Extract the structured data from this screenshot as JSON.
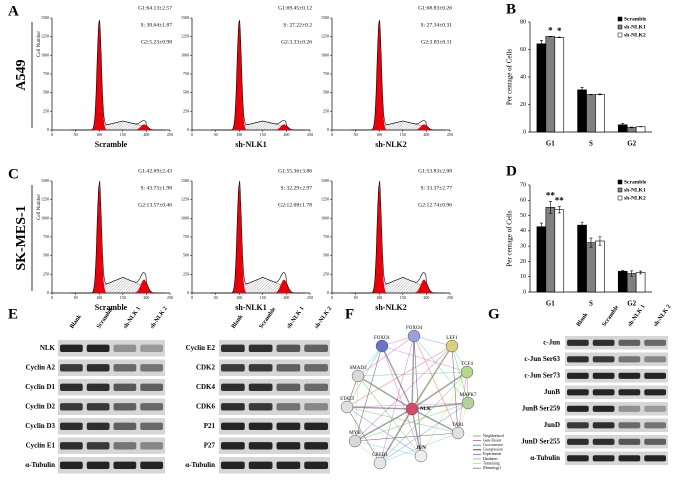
{
  "panel_labels": {
    "a": "A",
    "b": "B",
    "c": "C",
    "d": "D",
    "e": "E",
    "f": "F",
    "g": "G"
  },
  "flow": [
    {
      "cell_line": "A549",
      "y_label": "Cell Number",
      "xlim": [
        0,
        250
      ],
      "xticks": [
        0,
        50,
        100,
        150,
        200,
        250
      ],
      "ylim": [
        0,
        1500
      ],
      "yticks": [
        0,
        250,
        500,
        750,
        1000,
        1250,
        1500
      ],
      "samples": [
        {
          "name": "Scramble",
          "stats": [
            "G1:64.13±2.57",
            "S: 30.64±1.87",
            "G2:5.23±0.98"
          ]
        },
        {
          "name": "sh-NLK1",
          "stats": [
            "G1:69.45±0.12",
            "S: 27.22±0.2",
            "G2:3.33±0.26"
          ]
        },
        {
          "name": "sh-NLK2",
          "stats": [
            "G1:68.83±0.26",
            "S: 27.34±0.31",
            "G2:3.83±0.11"
          ]
        }
      ]
    },
    {
      "cell_line": "SK-MES-1",
      "y_label": "Cell Number",
      "xlim": [
        0,
        250
      ],
      "xticks": [
        0,
        50,
        100,
        150,
        200,
        250
      ],
      "ylim": [
        0,
        1500
      ],
      "yticks": [
        0,
        250,
        500,
        750,
        1000,
        1250,
        1500
      ],
      "samples": [
        {
          "name": "Scramble",
          "stats": [
            "G1:42.69±2.43",
            "S: 43.73±1.98",
            "G2:13.57±0.46"
          ]
        },
        {
          "name": "sh-NLK1",
          "stats": [
            "G1:55.36±3.86",
            "S: 32.29±2.97",
            "G2:12.08±1.78"
          ]
        },
        {
          "name": "sh-NLK2",
          "stats": [
            "G1:53.83±2.08",
            "S: 33.37±2.77",
            "G2:12.74±0.96"
          ]
        }
      ]
    }
  ],
  "chart_data": [
    {
      "type": "bar",
      "y_label": "Per centage of Cells",
      "categories": [
        "G1",
        "S",
        "G2"
      ],
      "series": [
        {
          "name": "Scramble",
          "color": "#000000",
          "values": [
            64.13,
            30.64,
            5.23
          ],
          "errors": [
            2.57,
            1.87,
            0.98
          ]
        },
        {
          "name": "sh-NLK1",
          "color": "#808080",
          "values": [
            69.45,
            27.22,
            3.33
          ],
          "errors": [
            0.12,
            0.2,
            0.26
          ]
        },
        {
          "name": "sh-NLK2",
          "color": "#ffffff",
          "values": [
            68.83,
            27.34,
            3.83
          ],
          "errors": [
            0.26,
            0.31,
            0.11
          ]
        }
      ],
      "ylim": [
        0,
        80
      ],
      "yticks": [
        0,
        20,
        40,
        60,
        80
      ],
      "annotations": [
        {
          "text": "*",
          "series": "sh-NLK1",
          "category": "G1"
        },
        {
          "text": "*",
          "series": "sh-NLK2",
          "category": "G1"
        }
      ]
    },
    {
      "type": "bar",
      "y_label": "Per centage of Cells",
      "categories": [
        "G1",
        "S",
        "G2"
      ],
      "series": [
        {
          "name": "Scramble",
          "color": "#000000",
          "values": [
            42.69,
            43.73,
            13.57
          ],
          "errors": [
            2.43,
            1.98,
            0.46
          ]
        },
        {
          "name": "sh-NLK1",
          "color": "#808080",
          "values": [
            55.36,
            32.29,
            12.08
          ],
          "errors": [
            3.86,
            2.97,
            1.78
          ]
        },
        {
          "name": "sh-NLK2",
          "color": "#ffffff",
          "values": [
            53.83,
            33.37,
            12.74
          ],
          "errors": [
            2.08,
            2.77,
            0.96
          ]
        }
      ],
      "ylim": [
        0,
        70
      ],
      "yticks": [
        0,
        10,
        20,
        30,
        40,
        50,
        60,
        70
      ],
      "annotations": [
        {
          "text": "**",
          "series": "sh-NLK1",
          "category": "G1"
        },
        {
          "text": "**",
          "series": "sh-NLK2",
          "category": "G1"
        }
      ]
    }
  ],
  "blots": [
    {
      "lanes": [
        "Blank",
        "Scramble",
        "sh-NLK 1",
        "sh-NLK 2"
      ],
      "rows": [
        "NLK",
        "Cyclin A2",
        "Cyclin D1",
        "Cyclin D2",
        "Cyclin D3",
        "Cyclin E1",
        "α-Tubulin"
      ]
    },
    {
      "lanes": [
        "Blank",
        "Scramble",
        "sh-NLK 1",
        "sh-NLK 2"
      ],
      "rows": [
        "Cyclin E2",
        "CDK2",
        "CDK4",
        "CDK6",
        "P21",
        "P27",
        "α-Tubulin"
      ]
    },
    {
      "lanes": [
        "Blank",
        "Scramble",
        "sh-NLK 1",
        "sh-NLK 2"
      ],
      "rows": [
        "c-Jun",
        "c-Jun Ser63",
        "c-Jun Ser73",
        "JunB",
        "JunB Ser259",
        "JunD",
        "JunD Ser255",
        "α-Tubulin"
      ]
    }
  ],
  "network": {
    "nodes": [
      "FOXO4",
      "FOXO1",
      "LEF1",
      "TCF4",
      "SMAD3",
      "MAPK7",
      "STAT3",
      "NLK",
      "TAB1",
      "MYB",
      "JUN",
      "CREB1"
    ],
    "legend": [
      "Neighborhood",
      "Gene Fusion",
      "Cooccurrence",
      "Coexpression",
      "Experiments",
      "Databases",
      "Textmining",
      "[Homology]"
    ]
  }
}
